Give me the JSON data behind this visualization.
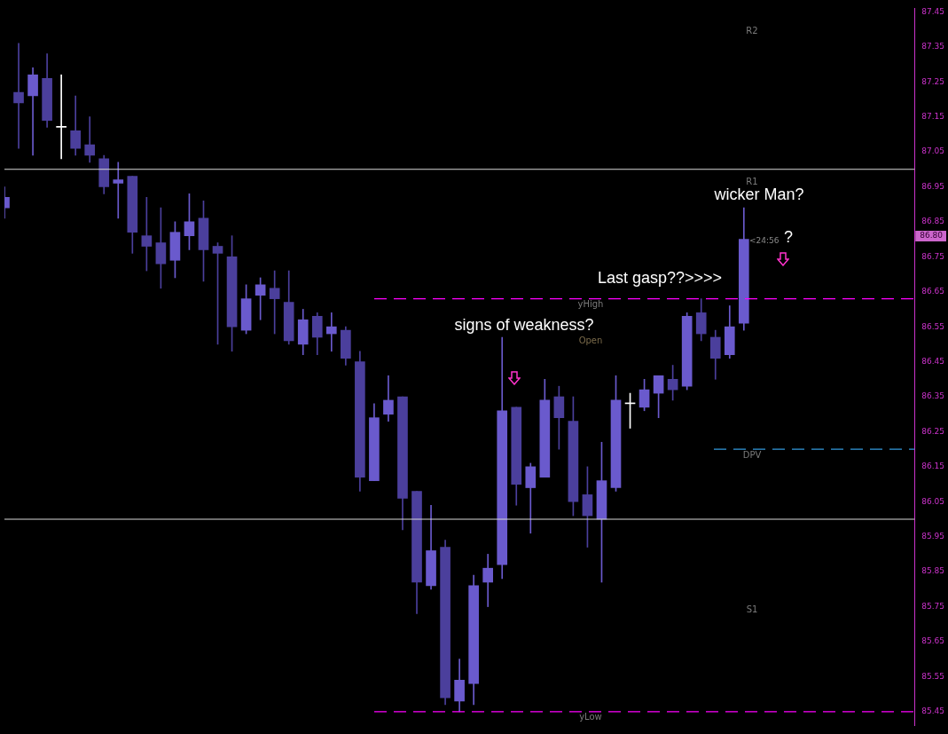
{
  "chart_data": {
    "type": "candlestick",
    "categories": [
      null,
      null,
      null,
      null,
      null,
      null,
      null,
      null,
      null,
      null,
      null,
      null,
      null,
      null,
      null,
      null,
      null,
      null,
      null,
      null,
      null,
      null,
      null,
      null,
      null,
      null,
      null,
      null,
      null,
      null,
      null,
      null,
      null,
      null,
      null,
      null,
      null,
      null,
      null,
      null,
      null,
      null,
      null,
      null,
      null,
      null,
      null,
      null,
      null,
      null,
      null,
      null,
      null,
      null,
      null,
      null,
      null,
      null,
      null,
      null,
      null,
      null,
      null,
      null,
      null
    ],
    "ohlc": [
      [
        86.89,
        86.95,
        86.86,
        86.92
      ],
      [
        87.22,
        87.36,
        87.06,
        87.19
      ],
      [
        87.21,
        87.29,
        87.04,
        87.27
      ],
      [
        87.26,
        87.33,
        87.12,
        87.14
      ],
      [
        87.12,
        87.27,
        87.03,
        87.12
      ],
      [
        87.11,
        87.21,
        87.04,
        87.06
      ],
      [
        87.07,
        87.15,
        87.02,
        87.04
      ],
      [
        87.03,
        87.04,
        86.93,
        86.95
      ],
      [
        86.96,
        87.02,
        86.86,
        86.97
      ],
      [
        86.98,
        86.98,
        86.76,
        86.82
      ],
      [
        86.81,
        86.92,
        86.71,
        86.78
      ],
      [
        86.79,
        86.89,
        86.66,
        86.73
      ],
      [
        86.74,
        86.85,
        86.69,
        86.82
      ],
      [
        86.81,
        86.93,
        86.77,
        86.85
      ],
      [
        86.86,
        86.91,
        86.68,
        86.77
      ],
      [
        86.78,
        86.79,
        86.5,
        86.76
      ],
      [
        86.75,
        86.81,
        86.48,
        86.55
      ],
      [
        86.54,
        86.67,
        86.53,
        86.63
      ],
      [
        86.64,
        86.69,
        86.57,
        86.67
      ],
      [
        86.66,
        86.71,
        86.53,
        86.63
      ],
      [
        86.62,
        86.71,
        86.5,
        86.51
      ],
      [
        86.5,
        86.6,
        86.47,
        86.57
      ],
      [
        86.58,
        86.59,
        86.47,
        86.52
      ],
      [
        86.53,
        86.59,
        86.48,
        86.55
      ],
      [
        86.54,
        86.55,
        86.44,
        86.46
      ],
      [
        86.45,
        86.48,
        86.08,
        86.12
      ],
      [
        86.11,
        86.33,
        86.11,
        86.29
      ],
      [
        86.3,
        86.41,
        86.28,
        86.34
      ],
      [
        86.35,
        86.35,
        85.97,
        86.06
      ],
      [
        86.08,
        86.08,
        85.73,
        85.82
      ],
      [
        85.81,
        86.04,
        85.8,
        85.91
      ],
      [
        85.92,
        85.94,
        85.47,
        85.49
      ],
      [
        85.48,
        85.6,
        85.45,
        85.54
      ],
      [
        85.53,
        85.84,
        85.47,
        85.81
      ],
      [
        85.82,
        85.9,
        85.75,
        85.86
      ],
      [
        85.87,
        86.52,
        85.83,
        86.31
      ],
      [
        86.32,
        86.32,
        86.04,
        86.1
      ],
      [
        86.09,
        86.16,
        85.96,
        86.15
      ],
      [
        86.12,
        86.4,
        86.12,
        86.34
      ],
      [
        86.35,
        86.38,
        86.2,
        86.29
      ],
      [
        86.28,
        86.35,
        86.01,
        86.05
      ],
      [
        86.07,
        86.15,
        85.92,
        86.01
      ],
      [
        86.0,
        86.22,
        85.82,
        86.11
      ],
      [
        86.09,
        86.41,
        86.08,
        86.34
      ],
      [
        86.33,
        86.36,
        86.26,
        86.33
      ],
      [
        86.32,
        86.4,
        86.31,
        86.37
      ],
      [
        86.36,
        86.41,
        86.29,
        86.41
      ],
      [
        86.4,
        86.44,
        86.34,
        86.37
      ],
      [
        86.38,
        86.59,
        86.37,
        86.58
      ],
      [
        86.59,
        86.63,
        86.51,
        86.53
      ],
      [
        86.52,
        86.54,
        86.4,
        86.46
      ],
      [
        86.47,
        86.61,
        86.46,
        86.55
      ],
      [
        86.56,
        86.89,
        86.54,
        86.8
      ],
      null,
      null,
      null,
      null,
      null,
      null,
      null,
      null,
      null,
      null,
      null,
      null
    ],
    "colors": [
      "#6a5acd",
      "#4b3f9c",
      "#6a5acd",
      "#4b3f9c",
      "#ffffff",
      "#4b3f9c",
      "#4b3f9c",
      "#4b3f9c",
      "#6a5acd",
      "#4b3f9c",
      "#4b3f9c",
      "#4b3f9c",
      "#6a5acd",
      "#6a5acd",
      "#4b3f9c",
      "#4b3f9c",
      "#4b3f9c",
      "#6a5acd",
      "#6a5acd",
      "#4b3f9c",
      "#4b3f9c",
      "#6a5acd",
      "#4b3f9c",
      "#6a5acd",
      "#4b3f9c",
      "#4b3f9c",
      "#6a5acd",
      "#6a5acd",
      "#4b3f9c",
      "#4b3f9c",
      "#6a5acd",
      "#4b3f9c",
      "#6a5acd",
      "#6a5acd",
      "#6a5acd",
      "#6a5acd",
      "#4b3f9c",
      "#6a5acd",
      "#6a5acd",
      "#4b3f9c",
      "#4b3f9c",
      "#4b3f9c",
      "#6a5acd",
      "#6a5acd",
      "#ffffff",
      "#6a5acd",
      "#6a5acd",
      "#4b3f9c",
      "#6a5acd",
      "#4b3f9c",
      "#4b3f9c",
      "#6a5acd",
      "#6a5acd",
      null,
      null,
      null,
      null,
      null,
      null,
      null,
      null,
      null,
      null,
      null,
      null
    ],
    "ylim": [
      85.41,
      87.46
    ],
    "yticks": [
      85.45,
      85.55,
      85.65,
      85.75,
      85.85,
      85.95,
      86.05,
      86.15,
      86.25,
      86.35,
      86.45,
      86.55,
      86.65,
      86.75,
      86.85,
      86.95,
      87.05,
      87.15,
      87.25,
      87.35,
      87.45
    ],
    "tick_labels": "y",
    "grid": false,
    "legend": false,
    "ref_lines": [
      {
        "axis": "y",
        "value": 87.0,
        "color": "#d8d8d8"
      },
      {
        "axis": "y",
        "value": 86.0,
        "color": "#d8d8d8"
      },
      {
        "axis": "y",
        "value": 86.63,
        "label": "yHigh",
        "color": "#ff00ff",
        "line_style": "dashed"
      },
      {
        "axis": "y",
        "value": 85.45,
        "label": "yLow",
        "color": "#ff00ff",
        "line_style": "dashed"
      },
      {
        "axis": "y",
        "value": 86.2,
        "label": "DPV",
        "color": "#3399dd",
        "line_style": "dashed"
      }
    ],
    "annotations": [
      "R2",
      "R1",
      "S1",
      "Open",
      "<24:56",
      "signs of weakness?",
      "Last gasp??>>>>",
      "wicker Man?",
      "?",
      "86.80"
    ]
  }
}
